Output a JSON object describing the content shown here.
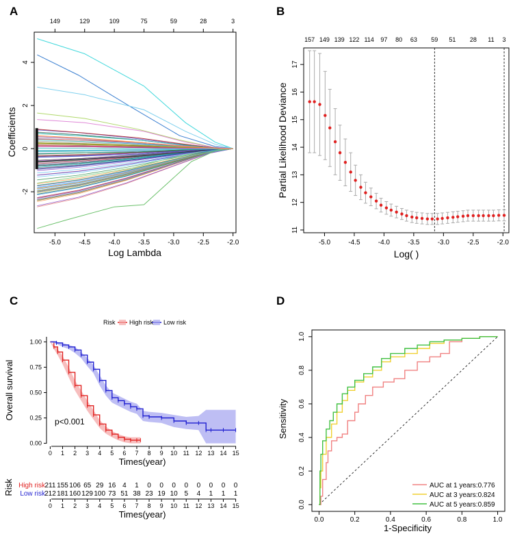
{
  "panels": {
    "A": {
      "letter": "A"
    },
    "B": {
      "letter": "B"
    },
    "C": {
      "letter": "C"
    },
    "D": {
      "letter": "D"
    }
  },
  "chart_data": [
    {
      "panel": "A",
      "type": "line",
      "title": "",
      "xlabel": "Log Lambda",
      "ylabel": "Coefficients",
      "xlim": [
        -5.35,
        -1.95
      ],
      "ylim": [
        -3.9,
        5.4
      ],
      "x_ticks": [
        -5.0,
        -4.5,
        -4.0,
        -3.5,
        -3.0,
        -2.5,
        -2.0
      ],
      "x_tick_labels": [
        "-5.0",
        "-4.5",
        "-4.0",
        "-3.5",
        "-3.0",
        "-2.5",
        "-2.0"
      ],
      "y_ticks": [
        -2,
        0,
        2,
        4
      ],
      "y_tick_labels": [
        "-2",
        "0",
        "2",
        "4"
      ],
      "top_ticks": [
        -5.0,
        -4.5,
        -4.0,
        -3.5,
        -3.0,
        -2.5,
        -2.0
      ],
      "top_labels": [
        "149",
        "129",
        "109",
        "75",
        "59",
        "28",
        "3"
      ],
      "series_note": "LASSO coefficient paths converging to 0 at log lambda near -2",
      "series": [
        {
          "name": "path1",
          "color": "#41d8dc",
          "values_x": [
            -5.3,
            -4.5,
            -3.5,
            -2.8,
            -2.3,
            -2.0
          ],
          "values_y": [
            5.1,
            4.4,
            2.9,
            1.2,
            0.3,
            0.0
          ]
        },
        {
          "name": "path2",
          "color": "#3a7fd0",
          "values_x": [
            -5.3,
            -4.6,
            -3.7,
            -2.9,
            -2.3,
            -2.0
          ],
          "values_y": [
            4.35,
            3.4,
            1.9,
            0.6,
            0.1,
            0.0
          ]
        },
        {
          "name": "path3",
          "color": "#7fd0ee",
          "values_x": [
            -5.3,
            -4.5,
            -3.5,
            -2.8,
            -2.3,
            -2.0
          ],
          "values_y": [
            2.85,
            2.5,
            1.8,
            0.8,
            0.2,
            0.0
          ]
        },
        {
          "name": "path4",
          "color": "#b0d86a",
          "values_x": [
            -5.3,
            -4.5,
            -3.6,
            -2.9,
            -2.3,
            -2.0
          ],
          "values_y": [
            1.65,
            1.4,
            0.9,
            0.4,
            0.05,
            0.0
          ]
        },
        {
          "name": "path5",
          "color": "#e08ad8",
          "values_x": [
            -5.3,
            -4.5,
            -3.5,
            -2.8,
            -2.3,
            -2.0
          ],
          "values_y": [
            1.35,
            1.2,
            0.8,
            0.3,
            0.05,
            0.0
          ]
        },
        {
          "name": "path6",
          "color": "#6ac06a",
          "values_x": [
            -5.3,
            -4.8,
            -4.0,
            -3.5,
            -3.1,
            -2.7,
            -2.3,
            -2.0
          ],
          "values_y": [
            -3.7,
            -3.3,
            -2.7,
            -2.6,
            -1.6,
            -0.6,
            -0.1,
            0.0
          ]
        },
        {
          "name": "path7",
          "color": "#8fd68f",
          "values_x": [
            -5.3,
            -4.6,
            -3.7,
            -3.0,
            -2.4,
            -2.0
          ],
          "values_y": [
            -1.6,
            -1.3,
            -0.9,
            -0.4,
            -0.05,
            0.0
          ]
        },
        {
          "name": "path8",
          "color": "#3a3aa0",
          "values_x": [
            -5.3,
            -4.6,
            -3.6,
            -2.8,
            -2.2,
            -2.0
          ],
          "values_y": [
            -0.95,
            -0.8,
            -0.5,
            -0.2,
            0.0,
            0.0
          ]
        },
        {
          "name": "path9",
          "color": "#c04040",
          "values_x": [
            -5.3,
            -4.6,
            -3.6,
            -2.8,
            -2.2,
            -2.0
          ],
          "values_y": [
            0.9,
            0.75,
            0.5,
            0.2,
            0.0,
            0.0
          ]
        },
        {
          "name": "path10",
          "color": "#3bb0b0",
          "values_x": [
            -5.3,
            -4.6,
            -3.6,
            -2.8,
            -2.2,
            -2.0
          ],
          "values_y": [
            0.7,
            0.6,
            0.4,
            0.15,
            0.0,
            0.0
          ]
        },
        {
          "name": "path11",
          "color": "#303030",
          "values_x": [
            -5.3,
            -4.6,
            -3.6,
            -2.8,
            -2.2,
            -2.0
          ],
          "values_y": [
            -0.6,
            -0.5,
            -0.35,
            -0.15,
            0.0,
            0.0
          ]
        },
        {
          "name": "path12",
          "color": "#d06060",
          "values_x": [
            -5.3,
            -4.6,
            -3.6,
            -2.8,
            -2.2,
            -2.0
          ],
          "values_y": [
            0.45,
            0.4,
            0.3,
            0.1,
            0.0,
            0.0
          ]
        },
        {
          "name": "path13",
          "color": "#5060d0",
          "values_x": [
            -5.3,
            -4.6,
            -3.6,
            -2.8,
            -2.2,
            -2.0
          ],
          "values_y": [
            -0.4,
            -0.35,
            -0.25,
            -0.1,
            0.0,
            0.0
          ]
        },
        {
          "name": "path14",
          "color": "#a0a020",
          "values_x": [
            -5.3,
            -4.6,
            -3.6,
            -2.8,
            -2.2,
            -2.0
          ],
          "values_y": [
            0.25,
            0.2,
            0.15,
            0.05,
            0.0,
            0.0
          ]
        },
        {
          "name": "path15",
          "color": "#20a060",
          "values_x": [
            -5.3,
            -4.6,
            -3.6,
            -2.8,
            -2.2,
            -2.0
          ],
          "values_y": [
            -0.25,
            -0.2,
            -0.15,
            -0.05,
            0.0,
            0.0
          ]
        },
        {
          "name": "path16",
          "color": "#d040a0",
          "values_x": [
            -5.3,
            -4.6,
            -3.6,
            -2.8,
            -2.2,
            -2.0
          ],
          "values_y": [
            0.1,
            0.1,
            0.05,
            0.02,
            0.0,
            0.0
          ]
        },
        {
          "name": "path17",
          "color": "#60c0f0",
          "values_x": [
            -5.3,
            -4.6,
            -3.6,
            -2.8,
            -2.2,
            -2.0
          ],
          "values_y": [
            -0.1,
            -0.08,
            -0.05,
            -0.02,
            0.0,
            0.0
          ]
        },
        {
          "name": "path18",
          "color": "#ff9040",
          "values_x": [
            -5.3,
            -4.6,
            -3.6,
            -2.8,
            -2.2,
            -2.0
          ],
          "values_y": [
            0.6,
            0.5,
            0.3,
            0.1,
            0.0,
            0.0
          ]
        }
      ]
    },
    {
      "panel": "B",
      "type": "scatter",
      "title": "",
      "xlabel": "Log( )",
      "ylabel": "Partial Likelihood Deviance",
      "xlim": [
        -5.35,
        -1.9
      ],
      "ylim": [
        10.9,
        17.6
      ],
      "x_ticks": [
        -5.0,
        -4.5,
        -4.0,
        -3.5,
        -3.0,
        -2.5,
        -2.0
      ],
      "x_tick_labels": [
        "-5.0",
        "-4.5",
        "-4.0",
        "-3.5",
        "-3.0",
        "-2.5",
        "-2.0"
      ],
      "y_ticks": [
        11,
        12,
        13,
        14,
        15,
        16,
        17
      ],
      "y_tick_labels": [
        "11",
        "12",
        "13",
        "14",
        "15",
        "16",
        "17"
      ],
      "top_ticks": [
        -5.25,
        -5.0,
        -4.75,
        -4.5,
        -4.25,
        -4.0,
        -3.75,
        -3.5,
        -3.15,
        -2.85,
        -2.5,
        -2.2,
        -1.98
      ],
      "top_labels": [
        "157",
        "149",
        "139",
        "122",
        "114",
        "97",
        "80",
        "63",
        "59",
        "51",
        "28",
        "11",
        "3"
      ],
      "vlines": [
        -3.15,
        -1.98
      ],
      "x": [
        -5.25,
        -5.17,
        -5.08,
        -4.99,
        -4.91,
        -4.82,
        -4.74,
        -4.65,
        -4.56,
        -4.48,
        -4.39,
        -4.31,
        -4.22,
        -4.13,
        -4.05,
        -3.96,
        -3.88,
        -3.79,
        -3.7,
        -3.62,
        -3.53,
        -3.45,
        -3.36,
        -3.27,
        -3.19,
        -3.1,
        -3.02,
        -2.93,
        -2.84,
        -2.76,
        -2.67,
        -2.59,
        -2.5,
        -2.41,
        -2.33,
        -2.24,
        -2.16,
        -2.07,
        -1.98
      ],
      "y": [
        15.65,
        15.65,
        15.55,
        15.15,
        14.7,
        14.2,
        13.8,
        13.45,
        13.1,
        12.8,
        12.55,
        12.35,
        12.2,
        12.05,
        11.9,
        11.8,
        11.72,
        11.65,
        11.58,
        11.52,
        11.47,
        11.44,
        11.42,
        11.4,
        11.4,
        11.4,
        11.42,
        11.44,
        11.46,
        11.48,
        11.5,
        11.52,
        11.52,
        11.52,
        11.52,
        11.52,
        11.52,
        11.53,
        11.53
      ],
      "err": [
        1.85,
        1.85,
        1.85,
        1.6,
        1.4,
        1.2,
        1.0,
        0.85,
        0.7,
        0.55,
        0.45,
        0.38,
        0.32,
        0.28,
        0.25,
        0.23,
        0.22,
        0.21,
        0.2,
        0.2,
        0.2,
        0.2,
        0.2,
        0.2,
        0.2,
        0.2,
        0.2,
        0.2,
        0.2,
        0.2,
        0.2,
        0.2,
        0.2,
        0.2,
        0.2,
        0.2,
        0.2,
        0.2,
        0.2
      ]
    },
    {
      "panel": "C",
      "type": "line",
      "title": "",
      "xlabel": "Times(year)",
      "ylabel": "Overall survival",
      "xlim": [
        -0.3,
        15.3
      ],
      "ylim": [
        -0.03,
        1.05
      ],
      "x_ticks": [
        0,
        1,
        2,
        3,
        4,
        5,
        6,
        7,
        8,
        9,
        10,
        11,
        12,
        13,
        14,
        15
      ],
      "x_tick_labels": [
        "0",
        "1",
        "2",
        "3",
        "4",
        "5",
        "6",
        "7",
        "8",
        "9",
        "10",
        "11",
        "12",
        "13",
        "14",
        "15"
      ],
      "y_ticks": [
        0.0,
        0.25,
        0.5,
        0.75,
        1.0
      ],
      "y_tick_labels": [
        "0.00",
        "0.25",
        "0.50",
        "0.75",
        "1.00"
      ],
      "legend_title": "Risk",
      "annotation": "p<0.001",
      "series": [
        {
          "name": "High risk",
          "color": "#e0201f",
          "fill": "#f4a8a8",
          "x": [
            0,
            0.3,
            0.6,
            1.0,
            1.5,
            2.0,
            2.5,
            3.0,
            3.5,
            4.0,
            4.5,
            5.0,
            5.5,
            6.0,
            6.5,
            7.0,
            7.3
          ],
          "y": [
            1.0,
            0.95,
            0.9,
            0.82,
            0.7,
            0.57,
            0.47,
            0.37,
            0.28,
            0.19,
            0.13,
            0.09,
            0.06,
            0.04,
            0.03,
            0.03,
            0.03
          ],
          "ci": [
            0.0,
            0.02,
            0.03,
            0.04,
            0.05,
            0.05,
            0.05,
            0.05,
            0.045,
            0.04,
            0.035,
            0.03,
            0.03,
            0.03,
            0.03,
            0.03,
            0.03
          ]
        },
        {
          "name": "Low risk",
          "color": "#1f1fd0",
          "fill": "#a8a8f0",
          "x": [
            0,
            0.5,
            1.0,
            1.5,
            2.0,
            2.5,
            3.0,
            3.5,
            4.0,
            4.5,
            5.0,
            5.5,
            6.0,
            6.5,
            7.0,
            7.5,
            8.0,
            9.0,
            10.0,
            11.0,
            12.0,
            12.6,
            13.0,
            14.0,
            15.0
          ],
          "y": [
            1.0,
            0.99,
            0.97,
            0.95,
            0.92,
            0.87,
            0.8,
            0.73,
            0.62,
            0.52,
            0.45,
            0.42,
            0.39,
            0.36,
            0.34,
            0.27,
            0.26,
            0.25,
            0.22,
            0.2,
            0.2,
            0.13,
            0.13,
            0.13,
            0.13
          ],
          "ci": [
            0.0,
            0.01,
            0.02,
            0.02,
            0.03,
            0.03,
            0.04,
            0.04,
            0.05,
            0.05,
            0.05,
            0.05,
            0.05,
            0.05,
            0.05,
            0.05,
            0.05,
            0.05,
            0.06,
            0.06,
            0.07,
            0.2,
            0.2,
            0.2,
            0.2
          ]
        }
      ],
      "risk_table": {
        "title": "Risk",
        "rows": [
          {
            "label": "High risk",
            "color": "#e0201f",
            "values": [
              "211",
              "155",
              "106",
              "65",
              "29",
              "16",
              "4",
              "1",
              "0",
              "0",
              "0",
              "0",
              "0",
              "0",
              "0",
              "0"
            ]
          },
          {
            "label": "Low risk",
            "color": "#1f1fd0",
            "values": [
              "212",
              "181",
              "160",
              "129",
              "100",
              "73",
              "51",
              "38",
              "23",
              "19",
              "10",
              "5",
              "4",
              "1",
              "1",
              "1"
            ]
          }
        ],
        "xlabel": "Times(year)",
        "x_tick_labels": [
          "0",
          "1",
          "2",
          "3",
          "4",
          "5",
          "6",
          "7",
          "8",
          "9",
          "10",
          "11",
          "12",
          "13",
          "14",
          "15"
        ]
      }
    },
    {
      "panel": "D",
      "type": "line",
      "title": "",
      "xlabel": "1-Specificity",
      "ylabel": "Sensitivity",
      "xlim": [
        -0.04,
        1.04
      ],
      "ylim": [
        -0.04,
        1.04
      ],
      "x_ticks": [
        0.0,
        0.2,
        0.4,
        0.6,
        0.8,
        1.0
      ],
      "x_tick_labels": [
        "0.0",
        "0.2",
        "0.4",
        "0.6",
        "0.8",
        "1.0"
      ],
      "y_ticks": [
        0.0,
        0.2,
        0.4,
        0.6,
        0.8,
        1.0
      ],
      "y_tick_labels": [
        "0.0",
        "0.2",
        "0.4",
        "0.6",
        "0.8",
        "1.0"
      ],
      "series": [
        {
          "name": "AUC at 1 years:0.776",
          "color": "#f08080",
          "x": [
            0,
            0.01,
            0.02,
            0.04,
            0.05,
            0.07,
            0.1,
            0.13,
            0.16,
            0.2,
            0.22,
            0.26,
            0.3,
            0.36,
            0.42,
            0.48,
            0.55,
            0.62,
            0.68,
            0.73,
            0.8,
            0.9,
            1.0
          ],
          "y": [
            0,
            0.05,
            0.15,
            0.25,
            0.32,
            0.38,
            0.4,
            0.42,
            0.5,
            0.55,
            0.6,
            0.65,
            0.7,
            0.73,
            0.75,
            0.8,
            0.85,
            0.88,
            0.9,
            0.97,
            0.99,
            1.0,
            1.0
          ]
        },
        {
          "name": "AUC at 3 years:0.824",
          "color": "#f0d030",
          "x": [
            0,
            0.005,
            0.01,
            0.02,
            0.04,
            0.07,
            0.1,
            0.13,
            0.16,
            0.2,
            0.25,
            0.3,
            0.35,
            0.4,
            0.48,
            0.55,
            0.62,
            0.7,
            0.8,
            0.9,
            1.0
          ],
          "y": [
            0,
            0.1,
            0.2,
            0.3,
            0.4,
            0.48,
            0.55,
            0.62,
            0.68,
            0.73,
            0.76,
            0.8,
            0.85,
            0.88,
            0.9,
            0.93,
            0.96,
            0.98,
            0.99,
            1.0,
            1.0
          ]
        },
        {
          "name": "AUC at 5 years:0.859",
          "color": "#40c040",
          "x": [
            0,
            0.005,
            0.01,
            0.02,
            0.04,
            0.06,
            0.08,
            0.1,
            0.13,
            0.16,
            0.2,
            0.25,
            0.3,
            0.35,
            0.4,
            0.48,
            0.55,
            0.62,
            0.7,
            0.8,
            0.9,
            1.0
          ],
          "y": [
            0,
            0.2,
            0.3,
            0.38,
            0.45,
            0.5,
            0.55,
            0.6,
            0.66,
            0.7,
            0.74,
            0.78,
            0.82,
            0.87,
            0.9,
            0.93,
            0.95,
            0.97,
            0.98,
            0.99,
            1.0,
            1.0
          ]
        }
      ],
      "diagonal": true,
      "legend_position": "bottom-right"
    }
  ]
}
